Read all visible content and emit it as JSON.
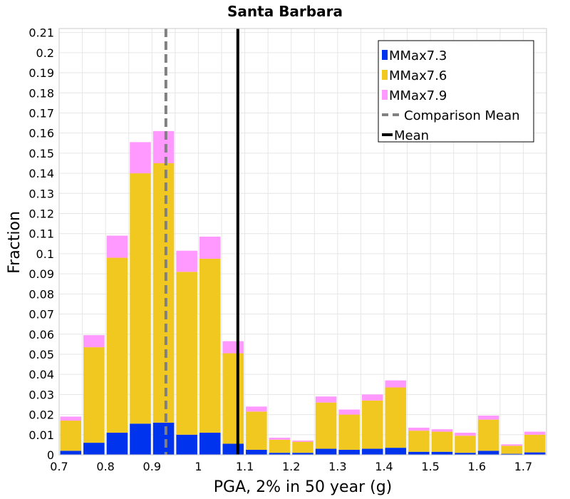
{
  "chart_data": {
    "type": "bar",
    "stacked": true,
    "title": "Santa Barbara",
    "xlabel": "PGA, 2% in 50 year (g)",
    "ylabel": "Fraction",
    "xlim": [
      0.7,
      1.75
    ],
    "ylim": [
      0,
      0.212
    ],
    "bin_width": 0.05,
    "x_ticks": [
      "0.7",
      "0.8",
      "0.9",
      "1",
      "1.1",
      "1.2",
      "1.3",
      "1.4",
      "1.5",
      "1.6",
      "1.7"
    ],
    "y_ticks": [
      "0",
      "0.01",
      "0.02",
      "0.03",
      "0.04",
      "0.05",
      "0.06",
      "0.07",
      "0.08",
      "0.09",
      "0.1",
      "0.11",
      "0.12",
      "0.13",
      "0.14",
      "0.15",
      "0.16",
      "0.17",
      "0.18",
      "0.19",
      "0.2",
      "0.21"
    ],
    "bin_starts": [
      0.7,
      0.75,
      0.8,
      0.85,
      0.9,
      0.95,
      1.0,
      1.05,
      1.1,
      1.15,
      1.2,
      1.25,
      1.3,
      1.35,
      1.4,
      1.45,
      1.5,
      1.55,
      1.6,
      1.65,
      1.7
    ],
    "series": [
      {
        "name": "MMax7.3",
        "color": "#0033ee",
        "values": [
          0.002,
          0.006,
          0.011,
          0.0155,
          0.016,
          0.01,
          0.011,
          0.0055,
          0.0025,
          0.001,
          0.001,
          0.003,
          0.0025,
          0.003,
          0.0035,
          0.0015,
          0.0015,
          0.001,
          0.002,
          0.0005,
          0.0012
        ]
      },
      {
        "name": "MMax7.6",
        "color": "#f0c820",
        "values": [
          0.015,
          0.0475,
          0.087,
          0.1245,
          0.129,
          0.081,
          0.0865,
          0.045,
          0.019,
          0.0065,
          0.0055,
          0.023,
          0.0175,
          0.024,
          0.03,
          0.0105,
          0.01,
          0.0085,
          0.0155,
          0.004,
          0.0088
        ]
      },
      {
        "name": "MMax7.9",
        "color": "#ff99ff",
        "values": [
          0.002,
          0.006,
          0.011,
          0.0155,
          0.016,
          0.0105,
          0.011,
          0.006,
          0.0025,
          0.001,
          0.0006,
          0.003,
          0.0025,
          0.003,
          0.0035,
          0.0015,
          0.0012,
          0.0015,
          0.002,
          0.0007,
          0.0015
        ]
      }
    ],
    "reference_lines": [
      {
        "name": "Comparison Mean",
        "x": 0.93,
        "style": "dashed",
        "color": "#808080"
      },
      {
        "name": "Mean",
        "x": 1.085,
        "style": "solid",
        "color": "#000000"
      }
    ],
    "grid": true,
    "legend_position": "top-right"
  }
}
